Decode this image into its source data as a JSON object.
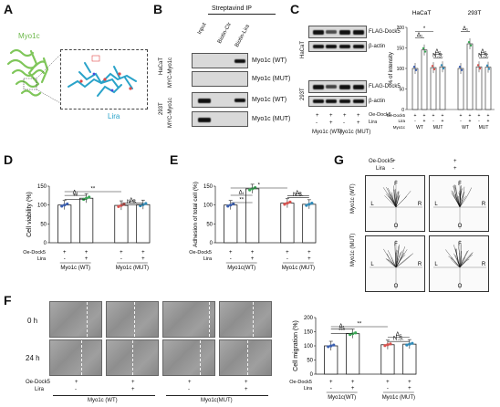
{
  "panels": {
    "A": "A",
    "B": "B",
    "C": "C",
    "D": "D",
    "E": "E",
    "F": "F",
    "G": "G"
  },
  "panelA": {
    "protein_label": "Myo1c",
    "ligand_label": "Lira"
  },
  "panelB": {
    "header": "Streptavind IP",
    "lanes": [
      "Input",
      "Biotin-Ctr",
      "Biotin-Lira"
    ],
    "cell_line_top": "HaCaT",
    "cell_line_bottom": "293T",
    "construct_label": "MYC-Myo1c",
    "construct_label2": "MYC-Myo1c",
    "rows": [
      "Myo1c (WT)",
      "Myo1c (MUT)",
      "Myo1c (WT)",
      "Myo1c (MUT)"
    ]
  },
  "panelC": {
    "cell_line_top": "HaCaT",
    "cell_line_bottom": "293T",
    "rows": [
      "FLAG-Dock5",
      "β-actin",
      "FLAG-Dock5",
      "β-actin"
    ],
    "oe_label": "Oe-Dock5",
    "lira_label": "Lira",
    "oe_signs": [
      "+",
      "+",
      "+",
      "+"
    ],
    "lira_signs": [
      "-",
      "+",
      "-",
      "+"
    ],
    "groups": [
      "Myo1c (WT)",
      "Myo1c (MUT)"
    ],
    "chart_title_left": "HaCaT",
    "chart_title_right": "293T",
    "ylabel": "% of intensity",
    "yticks": [
      "0",
      "50",
      "100",
      "150",
      "200"
    ],
    "sig_labels": [
      "*",
      "Δ₁",
      "Δ₂",
      "N.S.",
      "Δ₁",
      "Δ₂",
      "N.S."
    ],
    "row_oe": "Oe-Dock5",
    "row_lira": "Lira",
    "row_myo": "Myo1c",
    "oe_row": [
      "+",
      "+",
      "+",
      "+",
      "+",
      "+",
      "+",
      "+"
    ],
    "lira_row": [
      "-",
      "+",
      "-",
      "+",
      "-",
      "+",
      "-",
      "+"
    ],
    "myo_row": [
      "WT",
      "MUT",
      "WT",
      "MUT"
    ]
  },
  "panelD": {
    "ylabel": "Cell viability (%)",
    "yticks": [
      "0",
      "50",
      "100",
      "150"
    ],
    "sig": [
      "**",
      "Δ₁",
      "**",
      "Δ₂",
      "N.S."
    ],
    "oe_label": "Oe-Dock5",
    "lira_label": "Lira",
    "oe_signs": [
      "+",
      "+",
      "+",
      "+"
    ],
    "lira_signs": [
      "-",
      "+",
      "-",
      "+"
    ],
    "groups": [
      "Myo1c (WT)",
      "Myo1c (MUT)"
    ]
  },
  "panelE": {
    "ylabel": "Adhesion of total cell (%)",
    "yticks": [
      "0",
      "50",
      "100",
      "150"
    ],
    "sig": [
      "*",
      "Δ₁",
      "**",
      "Δ₂",
      "N.S."
    ],
    "oe_label": "Oe-Dock5",
    "lira_label": "Lira",
    "oe_signs": [
      "+",
      "+",
      "+",
      "+"
    ],
    "lira_signs": [
      "-",
      "+",
      "-",
      "+"
    ],
    "groups": [
      "Myo1c(WT)",
      "Myo1c (MUT)"
    ]
  },
  "panelF": {
    "time_0": "0 h",
    "time_24": "24 h",
    "oe_label": "Oe-Dock5",
    "lira_label": "Lira",
    "oe_signs": [
      "+",
      "+",
      "+",
      "+"
    ],
    "lira_signs": [
      "-",
      "+",
      "-",
      "+"
    ],
    "groups": [
      "Myo1c (WT)",
      "Myo1c(MUT)"
    ],
    "ylabel": "Cell migration (%)",
    "yticks": [
      "0",
      "50",
      "100",
      "150",
      "200"
    ],
    "sig": [
      "**",
      "Δ₁",
      "***",
      "Δ₂",
      "N.S."
    ],
    "chart_groups": [
      "Myo1c(WT)",
      "Myo1c (MUT)"
    ]
  },
  "panelG": {
    "oe_label": "Oe-Dock5",
    "lira_label": "Lira",
    "oe_signs": [
      "+",
      "+"
    ],
    "lira_signs": [
      "-",
      "+"
    ],
    "rows": [
      "Myo1c (WT)",
      "Myo1c (MUT)"
    ],
    "axis_F": "F",
    "axis_L": "L",
    "axis_R": "R",
    "axis_O": "O"
  },
  "chart_data": [
    {
      "type": "bar",
      "panel": "C-HaCaT",
      "categories": [
        "WT -",
        "WT +",
        "MUT -",
        "MUT +"
      ],
      "values": [
        100,
        145,
        102,
        104
      ],
      "ylabel": "% of intensity",
      "ylim": [
        0,
        200
      ]
    },
    {
      "type": "bar",
      "panel": "C-293T",
      "categories": [
        "WT -",
        "WT +",
        "MUT -",
        "MUT +"
      ],
      "values": [
        100,
        160,
        104,
        103
      ],
      "ylabel": "% of intensity",
      "ylim": [
        0,
        200
      ]
    },
    {
      "type": "bar",
      "panel": "D",
      "categories": [
        "WT -",
        "WT +",
        "MUT -",
        "MUT +"
      ],
      "values": [
        100,
        118,
        99,
        101
      ],
      "ylabel": "Cell viability (%)",
      "ylim": [
        0,
        150
      ]
    },
    {
      "type": "bar",
      "panel": "E",
      "categories": [
        "WT -",
        "WT +",
        "MUT -",
        "MUT +"
      ],
      "values": [
        100,
        143,
        105,
        102
      ],
      "ylabel": "Adhesion of total cell (%)",
      "ylim": [
        0,
        150
      ]
    },
    {
      "type": "bar",
      "panel": "F",
      "categories": [
        "WT -",
        "WT +",
        "MUT -",
        "MUT +"
      ],
      "values": [
        100,
        143,
        104,
        106
      ],
      "ylabel": "Cell migration (%)",
      "ylim": [
        0,
        200
      ]
    }
  ],
  "colors": {
    "bar_edge": "#222",
    "wt_minus": "#3b5fb0",
    "wt_plus": "#3aa655",
    "mut_minus": "#d9534f",
    "mut_plus": "#2f8ab8",
    "protein": "#7fc65a",
    "ligand": "#2aa3c9"
  }
}
